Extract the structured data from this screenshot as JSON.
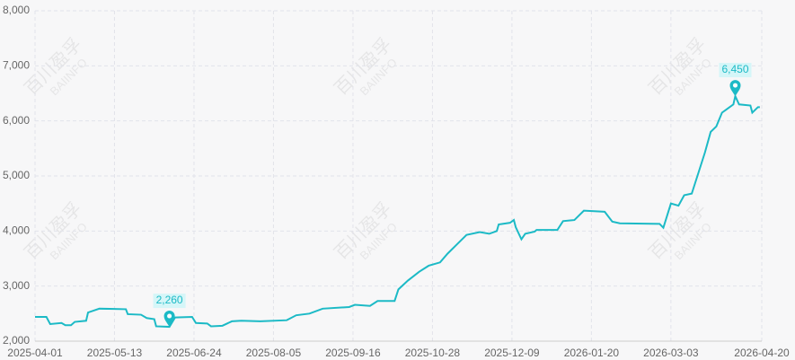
{
  "chart_data": {
    "type": "line",
    "watermark": [
      "百川盈孚",
      "BAIINFO"
    ],
    "x": [
      "2025-04-01",
      "2025-04-07",
      "2025-04-09",
      "2025-04-15",
      "2025-04-17",
      "2025-04-20",
      "2025-04-22",
      "2025-04-28",
      "2025-04-29",
      "2025-05-05",
      "2025-05-19",
      "2025-05-20",
      "2025-05-27",
      "2025-05-30",
      "2025-06-03",
      "2025-06-04",
      "2025-06-11",
      "2025-06-14",
      "2025-06-23",
      "2025-06-25",
      "2025-07-01",
      "2025-07-03",
      "2025-07-09",
      "2025-07-14",
      "2025-07-19",
      "2025-07-29",
      "2025-08-12",
      "2025-08-17",
      "2025-08-24",
      "2025-08-31",
      "2025-09-14",
      "2025-09-17",
      "2025-09-25",
      "2025-09-29",
      "2025-10-08",
      "2025-10-10",
      "2025-10-15",
      "2025-10-21",
      "2025-10-26",
      "2025-11-01",
      "2025-11-05",
      "2025-11-10",
      "2025-11-15",
      "2025-11-22",
      "2025-11-27",
      "2025-12-01",
      "2025-12-02",
      "2025-12-08",
      "2025-12-10",
      "2025-12-11",
      "2025-12-14",
      "2025-12-16",
      "2025-12-21",
      "2025-12-22",
      "2026-01-02",
      "2026-01-05",
      "2026-01-11",
      "2026-01-16",
      "2026-01-27",
      "2026-01-31",
      "2026-02-04",
      "2026-02-25",
      "2026-02-27",
      "2026-03-03",
      "2026-03-07",
      "2026-03-10",
      "2026-03-14",
      "2026-03-17",
      "2026-03-21",
      "2026-03-24",
      "2026-03-27",
      "2026-03-30",
      "2026-04-01",
      "2026-04-05",
      "2026-04-06",
      "2026-04-08",
      "2026-04-14",
      "2026-04-15",
      "2026-04-18",
      "2026-04-19"
    ],
    "series": [
      {
        "color": "#1cbac6",
        "values": [
          2440,
          2440,
          2310,
          2330,
          2290,
          2290,
          2350,
          2370,
          2520,
          2590,
          2580,
          2490,
          2480,
          2420,
          2400,
          2270,
          2260,
          2430,
          2440,
          2330,
          2320,
          2270,
          2280,
          2360,
          2370,
          2360,
          2380,
          2470,
          2500,
          2590,
          2620,
          2660,
          2640,
          2730,
          2730,
          2940,
          3100,
          3260,
          3370,
          3430,
          3590,
          3760,
          3930,
          3980,
          3950,
          4000,
          4120,
          4150,
          4200,
          4070,
          3850,
          3950,
          3990,
          4020,
          4020,
          4180,
          4200,
          4370,
          4350,
          4170,
          4140,
          4130,
          4060,
          4500,
          4460,
          4650,
          4680,
          5000,
          5430,
          5800,
          5900,
          6150,
          6200,
          6300,
          6450,
          6300,
          6280,
          6150,
          6250,
          6250
        ],
        "value_labels": [
          null,
          null,
          null,
          null,
          null,
          null,
          null,
          null,
          null,
          null,
          null,
          null,
          null,
          null,
          null,
          null,
          "2,260",
          null,
          null,
          null,
          null,
          null,
          null,
          null,
          null,
          null,
          null,
          null,
          null,
          null,
          null,
          null,
          null,
          null,
          null,
          null,
          null,
          null,
          null,
          null,
          null,
          null,
          null,
          null,
          null,
          null,
          null,
          null,
          null,
          null,
          null,
          null,
          null,
          null,
          null,
          null,
          null,
          null,
          null,
          null,
          null,
          null,
          null,
          null,
          null,
          null,
          null,
          null,
          null,
          null,
          null,
          null,
          null,
          null,
          "6,450",
          null,
          null,
          null,
          null,
          null
        ]
      }
    ],
    "xlim": [
      "2025-04-01",
      "2026-04-20"
    ],
    "xticks": [
      "2025-04-01",
      "2025-05-13",
      "2025-06-24",
      "2025-08-05",
      "2025-09-16",
      "2025-10-28",
      "2025-12-09",
      "2026-01-20",
      "2026-03-03",
      "2026-04-20"
    ],
    "ylim": [
      2000,
      8000
    ],
    "yticks": [
      {
        "value": 2000,
        "label": "2,000"
      },
      {
        "value": 3000,
        "label": "3,000"
      },
      {
        "value": 4000,
        "label": "4,000"
      },
      {
        "value": 5000,
        "label": "5,000"
      },
      {
        "value": 6000,
        "label": "6,000"
      },
      {
        "value": 7000,
        "label": "7,000"
      },
      {
        "value": 8000,
        "label": "8,000"
      }
    ],
    "grid": true
  }
}
